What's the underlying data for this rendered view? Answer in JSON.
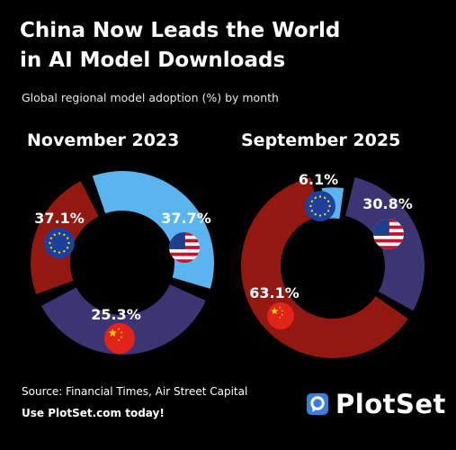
{
  "header": {
    "title_line1": "China Now Leads the World",
    "title_line2": "in AI Model Downloads",
    "subtitle": "Global regional model adoption (%) by month"
  },
  "chart_data": [
    {
      "type": "pie",
      "title": "November 2023",
      "categories": [
        "EU",
        "USA",
        "China"
      ],
      "values": [
        37.1,
        37.7,
        25.3
      ],
      "labels": [
        "37.1%",
        "37.7%",
        "25.3%"
      ],
      "colors": [
        "#59b4ef",
        "#3b3574",
        "#941812"
      ]
    },
    {
      "type": "pie",
      "title": "September 2025",
      "categories": [
        "EU",
        "USA",
        "China"
      ],
      "values": [
        6.1,
        30.8,
        63.1
      ],
      "labels": [
        "6.1%",
        "30.8%",
        "63.1%"
      ],
      "colors": [
        "#59b4ef",
        "#3b3574",
        "#941812"
      ]
    }
  ],
  "footer": {
    "source": "Source: Financial Times, Air Street Capital",
    "cta": "Use PlotSet.com today!",
    "brand": "PlotSet"
  }
}
